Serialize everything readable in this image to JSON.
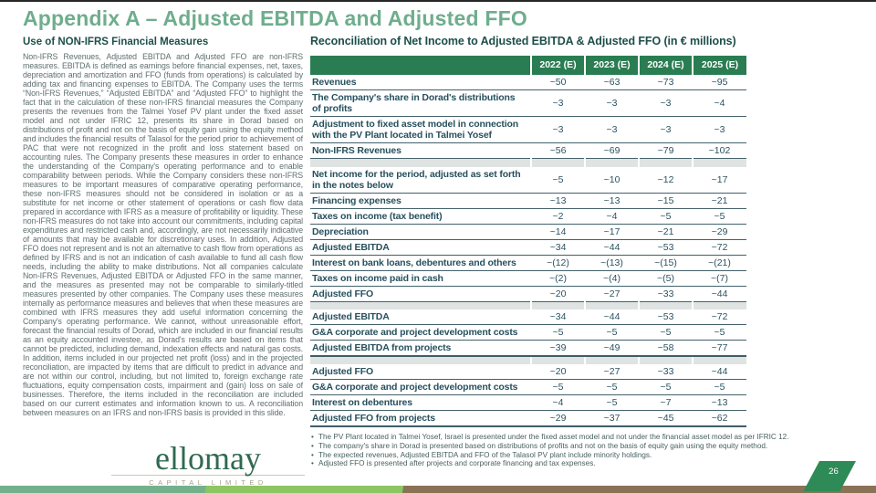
{
  "slide": {
    "title": "Appendix A – Adjusted EBITDA and Adjusted FFO",
    "page_number": "26"
  },
  "left_section": {
    "heading": "Use of NON-IFRS Financial Measures",
    "body": "Non-IFRS Revenues, Adjusted EBITDA and Adjusted FFO are non-IFRS measures. EBITDA is defined as earnings before financial expenses, net, taxes, depreciation and amortization and FFO (funds from operations) is calculated by adding tax and financing expenses to EBITDA. The Company uses the terms “Non-IFRS Revenues,” “Adjusted EBITDA” and “Adjusted FFO” to highlight the fact that in the calculation of these non-IFRS financial measures the Company presents the revenues from the Talmei Yosef PV plant under the fixed asset model and not under IFRIC 12, presents its share in Dorad based on distributions of profit and not on the basis of equity gain using the equity method and includes the financial results of Talasol for the period prior to achievement of PAC that were not recognized in the profit and loss statement based on accounting rules. The Company presents these measures in order to enhance the understanding of the Company's operating performance and to enable comparability between periods. While the Company considers these non-IFRS measures to be important measures of comparative operating performance, these non-IFRS measures should not be considered in isolation or as a substitute for net income or other statement of operations or cash flow data prepared in accordance with IFRS as a measure of profitability or liquidity. These non-IFRS measures do not take into account our commitments, including capital expenditures and restricted cash and, accordingly, are not necessarily indicative of amounts that may be available for discretionary uses. In addition, Adjusted FFO does not represent and is not an alternative to cash flow from operations as defined by IFRS and is not an indication of cash available to fund all cash flow needs, including the ability to make distributions. Not all companies calculate Non-IFRS Revenues, Adjusted EBITDA or Adjusted FFO in the same manner, and the measures as presented may not be comparable to similarly-titled measures presented by other companies. The Company uses these measures internally as performance measures and believes that when these measures are combined with IFRS measures they add useful information concerning the Company's operating performance. We cannot, without unreasonable effort, forecast the financial results of Dorad, which are included in our financial results as an equity accounted investee, as Dorad's results are based on items that cannot be predicted, including demand, indexation effects and natural gas costs. In addition, items included in our projected net profit (loss) and in the projected reconciliation, are impacted by items that are difficult to predict in advance and are not within our control, including, but not limited to, foreign exchange rate fluctuations, equity compensation costs, impairment and (gain) loss on sale of businesses. Therefore, the items included in the reconciliation are included based on our current estimates and information known to us. A reconciliation between measures on an IFRS and non-IFRS basis is provided in this slide."
  },
  "logo": {
    "name": "ellomay",
    "subtitle": "CAPITAL LIMITED"
  },
  "table_section": {
    "heading": "Reconciliation of Net Income to Adjusted EBITDA & Adjusted FFO (in € millions)",
    "columns": [
      "2022 (E)",
      "2023 (E)",
      "2024 (E)",
      "2025 (E)"
    ],
    "rows": [
      {
        "label": "Revenues",
        "values": [
          "~50",
          "~63",
          "~73",
          "~95"
        ]
      },
      {
        "label": "The Company's share in Dorad's distributions of profits",
        "values": [
          "~3",
          "~3",
          "~3",
          "~4"
        ]
      },
      {
        "label": "Adjustment to fixed asset model in connection with the PV Plant located in Talmei Yosef",
        "values": [
          "~3",
          "~3",
          "~3",
          "~3"
        ]
      },
      {
        "label": "Non-IFRS Revenues",
        "values": [
          "~56",
          "~69",
          "~79",
          "~102"
        ]
      },
      {
        "separator": true
      },
      {
        "label": "Net income for the period, adjusted as set forth in the notes below",
        "values": [
          "~5",
          "~10",
          "~12",
          "~17"
        ]
      },
      {
        "label": "Financing expenses",
        "values": [
          "~13",
          "~13",
          "~15",
          "~21"
        ]
      },
      {
        "label": "Taxes on income (tax benefit)",
        "values": [
          "~2",
          "~4",
          "~5",
          "~5"
        ]
      },
      {
        "label": "Depreciation",
        "values": [
          "~14",
          "~17",
          "~21",
          "~29"
        ]
      },
      {
        "label": "Adjusted EBITDA",
        "values": [
          "~34",
          "~44",
          "~53",
          "~72"
        ]
      },
      {
        "label": "Interest on bank loans, debentures and others",
        "values": [
          "~(12)",
          "~(13)",
          "~(15)",
          "~(21)"
        ]
      },
      {
        "label": "Taxes on income paid in cash",
        "values": [
          "~(2)",
          "~(4)",
          "~(5)",
          "~(7)"
        ]
      },
      {
        "label": "Adjusted FFO",
        "values": [
          "~20",
          "~27",
          "~33",
          "~44"
        ]
      },
      {
        "separator": true
      },
      {
        "label": "Adjusted EBITDA",
        "values": [
          "~34",
          "~44",
          "~53",
          "~72"
        ]
      },
      {
        "label": "G&A corporate and project development costs",
        "values": [
          "~5",
          "~5",
          "~5",
          "~5"
        ]
      },
      {
        "label": "Adjusted EBITDA from projects",
        "values": [
          "~39",
          "~49",
          "~58",
          "~77"
        ],
        "emphasis": true
      },
      {
        "separator": true
      },
      {
        "label": "Adjusted FFO",
        "values": [
          "~20",
          "~27",
          "~33",
          "~44"
        ]
      },
      {
        "label": "G&A corporate and project development costs",
        "values": [
          "~5",
          "~5",
          "~5",
          "~5"
        ]
      },
      {
        "label": "Interest on debentures",
        "values": [
          "~4",
          "~5",
          "~7",
          "~13"
        ]
      },
      {
        "label": "Adjusted FFO from projects",
        "values": [
          "~29",
          "~37",
          "~45",
          "~62"
        ],
        "emphasis": true
      }
    ],
    "footnotes": [
      "The PV Plant located in Talmei Yosef, Israel is presented under the fixed asset model and not under the financial asset model as per IFRIC 12.",
      "The company's share in Dorad is presented based on distributions of profits and not on the basis of equity gain using the equity method.",
      "The expected revenues, Adjusted EBITDA and FFO of the Talasol PV plant include minority holdings.",
      "Adjusted FFO is presented after projects and corporate financing and tax expenses."
    ]
  },
  "colors": {
    "title_green": "#6fad8d",
    "heading_teal": "#1d4f4a",
    "table_header_green": "#2a7d52",
    "table_text": "#27505e",
    "row_border": "#44616b",
    "separator_gray": "#dfe4e3",
    "body_text": "#5e6f6e",
    "strip_teal": "#73b18c",
    "strip_green": "#8cc561",
    "strip_brown": "#897255",
    "badge_green": "#2e8a56",
    "logo_green": "#2f6950"
  }
}
